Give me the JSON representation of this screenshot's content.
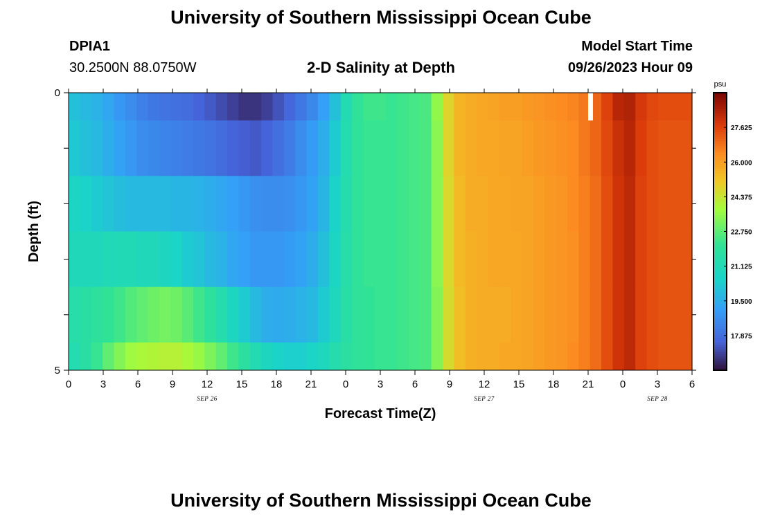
{
  "header": {
    "title": "University of Southern Mississippi Ocean Cube",
    "station": "DPIA1",
    "coords": "30.2500N  88.0750W",
    "chart_title": "2-D Salinity at Depth",
    "model_label": "Model Start Time",
    "model_time": "09/26/2023 Hour 09"
  },
  "footer": {
    "title": "University of Southern Mississippi Ocean Cube"
  },
  "chart_data": {
    "type": "heatmap",
    "title": "2-D Salinity at Depth",
    "xlabel": "Forecast Time(Z)",
    "ylabel": "Depth (ft)",
    "x_tick_labels": [
      "0",
      "3",
      "6",
      "9",
      "12",
      "15",
      "18",
      "21",
      "0",
      "3",
      "6",
      "9",
      "12",
      "15",
      "18",
      "21",
      "0",
      "3",
      "6"
    ],
    "date_labels": [
      "SEP 26",
      "SEP 27",
      "SEP 28"
    ],
    "y_tick_labels": [
      "0",
      "5"
    ],
    "ylim": [
      0,
      5
    ],
    "colorbar": {
      "unit": "psu",
      "range": [
        16.25,
        29.25
      ],
      "ticks": [
        "27.625",
        "26.000",
        "24.375",
        "22.750",
        "21.125",
        "19.500",
        "17.875"
      ],
      "colormap": "turbo"
    },
    "x_hours": [
      0,
      1,
      2,
      3,
      4,
      5,
      6,
      7,
      8,
      9,
      10,
      11,
      12,
      13,
      14,
      15,
      16,
      17,
      18,
      19,
      20,
      21,
      22,
      23,
      24,
      25,
      26,
      27,
      28,
      29,
      30,
      31,
      32,
      33,
      34,
      35,
      36,
      37,
      38,
      39,
      40,
      41,
      42,
      43,
      44,
      45,
      46,
      47,
      48,
      49,
      50,
      51,
      52,
      53,
      54
    ],
    "depth_bins": [
      "0-0.5",
      "0.5-1.5",
      "1.5-2.5",
      "2.5-3.5",
      "3.5-4.5",
      "4.5-5"
    ],
    "salinity": [
      [
        20.0,
        19.8,
        19.6,
        19.3,
        18.9,
        18.6,
        18.3,
        18.1,
        18.0,
        17.9,
        17.8,
        17.6,
        17.4,
        17.2,
        17.0,
        16.8,
        16.8,
        17.0,
        17.3,
        17.7,
        18.1,
        18.5,
        19.1,
        20.0,
        21.2,
        22.0,
        22.3,
        22.3,
        22.2,
        22.3,
        22.4,
        22.5,
        23.5,
        24.8,
        25.5,
        25.7,
        25.8,
        25.9,
        26.0,
        26.0,
        26.1,
        26.2,
        26.3,
        26.4,
        26.5,
        26.7,
        27.0,
        27.6,
        28.3,
        28.4,
        27.8,
        27.5,
        27.4,
        27.4,
        27.4
      ],
      [
        20.2,
        20.0,
        19.8,
        19.5,
        19.2,
        18.9,
        18.6,
        18.5,
        18.4,
        18.3,
        18.2,
        18.1,
        18.0,
        17.8,
        17.6,
        17.5,
        17.4,
        17.6,
        17.9,
        18.2,
        18.6,
        19.0,
        19.5,
        20.3,
        21.3,
        22.0,
        22.2,
        22.2,
        22.2,
        22.3,
        22.4,
        22.5,
        23.4,
        24.8,
        25.5,
        25.7,
        25.8,
        25.8,
        25.9,
        25.9,
        26.0,
        26.1,
        26.2,
        26.3,
        26.4,
        26.7,
        27.0,
        27.5,
        28.0,
        28.3,
        27.7,
        27.4,
        27.3,
        27.3,
        27.3
      ],
      [
        20.7,
        20.5,
        20.3,
        20.1,
        19.9,
        19.8,
        19.8,
        19.8,
        19.8,
        19.7,
        19.7,
        19.6,
        19.5,
        19.3,
        19.1,
        18.9,
        18.7,
        18.6,
        18.6,
        18.7,
        18.9,
        19.2,
        19.7,
        20.5,
        21.4,
        22.0,
        22.2,
        22.2,
        22.2,
        22.3,
        22.4,
        22.5,
        23.4,
        24.7,
        25.4,
        25.7,
        25.7,
        25.8,
        25.8,
        25.9,
        25.9,
        26.0,
        26.1,
        26.2,
        26.4,
        26.6,
        26.9,
        27.4,
        27.9,
        28.2,
        27.6,
        27.4,
        27.3,
        27.3,
        27.3
      ],
      [
        21.0,
        21.0,
        21.0,
        21.1,
        21.1,
        21.1,
        21.0,
        21.0,
        20.8,
        20.6,
        20.3,
        20.1,
        19.8,
        19.6,
        19.3,
        19.1,
        18.9,
        18.9,
        18.9,
        19.0,
        19.2,
        19.5,
        20.0,
        20.7,
        21.5,
        22.0,
        22.2,
        22.2,
        22.2,
        22.3,
        22.4,
        22.5,
        23.4,
        24.7,
        25.4,
        25.6,
        25.7,
        25.8,
        25.8,
        25.8,
        25.9,
        26.0,
        26.1,
        26.2,
        26.3,
        26.6,
        26.9,
        27.4,
        27.9,
        28.2,
        27.6,
        27.4,
        27.3,
        27.3,
        27.3
      ],
      [
        21.5,
        21.7,
        21.9,
        22.1,
        22.3,
        22.6,
        22.8,
        23.0,
        23.1,
        23.0,
        22.7,
        22.3,
        21.9,
        21.4,
        20.8,
        20.3,
        19.8,
        19.5,
        19.4,
        19.5,
        19.6,
        19.8,
        20.3,
        20.9,
        21.6,
        22.0,
        22.1,
        22.2,
        22.2,
        22.3,
        22.4,
        22.5,
        23.3,
        24.6,
        25.3,
        25.6,
        25.7,
        25.7,
        25.7,
        25.8,
        25.9,
        26.0,
        26.1,
        26.2,
        26.3,
        26.6,
        26.9,
        27.4,
        27.9,
        28.2,
        27.6,
        27.4,
        27.3,
        27.3,
        27.3
      ],
      [
        21.3,
        21.7,
        22.2,
        22.8,
        23.3,
        23.7,
        23.9,
        24.0,
        24.1,
        24.1,
        23.9,
        23.6,
        23.2,
        22.8,
        22.3,
        21.8,
        21.2,
        20.8,
        20.5,
        20.4,
        20.4,
        20.6,
        20.9,
        21.4,
        21.8,
        22.0,
        22.1,
        22.2,
        22.2,
        22.3,
        22.4,
        22.5,
        23.3,
        24.6,
        25.3,
        25.6,
        25.7,
        25.7,
        25.8,
        25.8,
        25.9,
        26.0,
        26.1,
        26.2,
        26.4,
        26.6,
        26.9,
        27.4,
        27.9,
        28.2,
        27.6,
        27.4,
        27.3,
        27.3,
        27.3
      ]
    ],
    "missing_marker": {
      "x_hour": 45,
      "depth": [
        0,
        0.5
      ]
    }
  }
}
